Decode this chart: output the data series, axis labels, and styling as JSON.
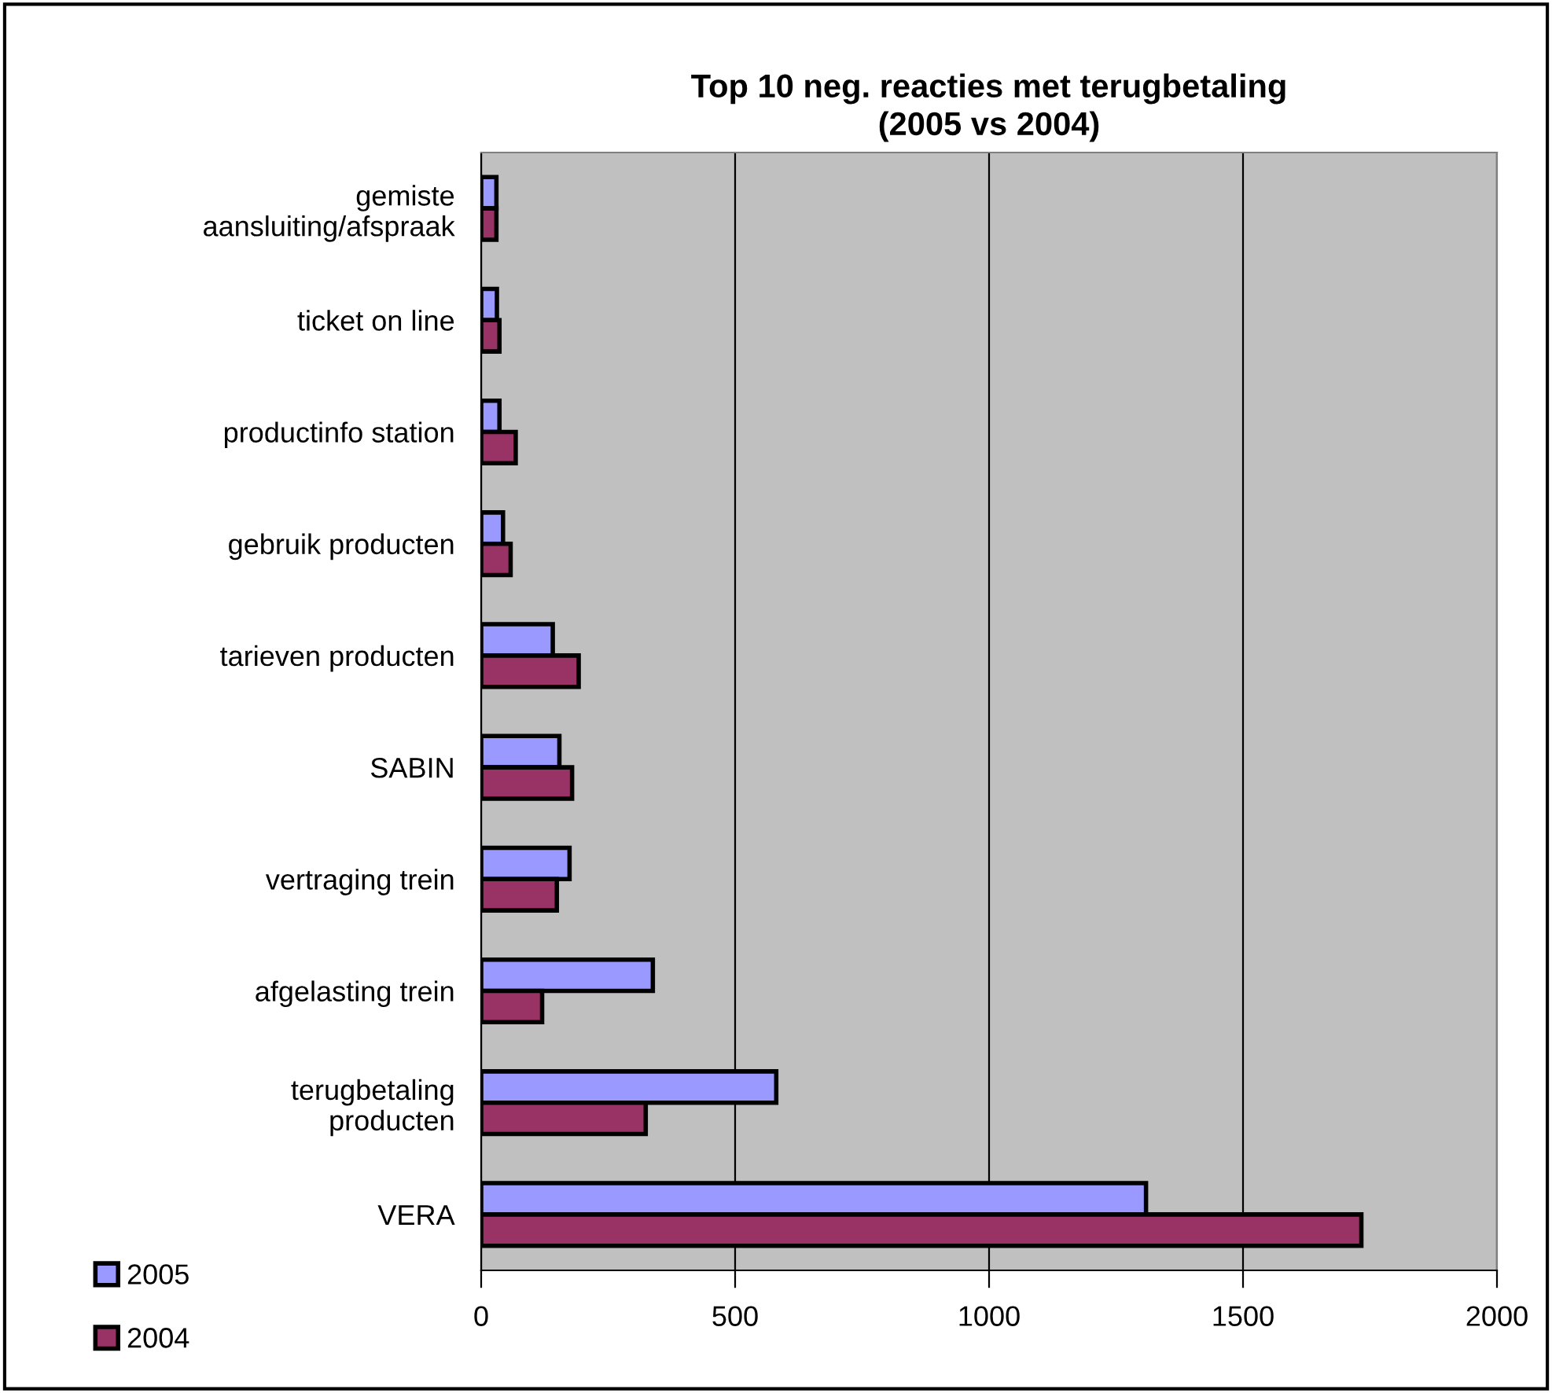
{
  "chart_data": {
    "type": "bar",
    "orientation": "horizontal",
    "title": "Top 10 neg. reacties met terugbetaling\n(2005 vs 2004)",
    "categories": [
      "gemiste aansluiting/afspraak",
      "ticket on line",
      "productinfo station",
      "gebruik producten",
      "tarieven producten",
      "SABIN",
      "vertraging trein",
      "afgelasting trein",
      "terugbetaling producten",
      "VERA"
    ],
    "series": [
      {
        "name": "2005",
        "color": "#9999ff",
        "values": [
          30,
          31,
          36,
          43,
          141,
          154,
          174,
          338,
          581,
          1309
        ]
      },
      {
        "name": "2004",
        "color": "#993366",
        "values": [
          30,
          36,
          68,
          58,
          192,
          179,
          149,
          120,
          324,
          1733
        ]
      }
    ],
    "xlim": [
      0,
      2000
    ],
    "xticks": [
      0,
      500,
      1000,
      1500,
      2000
    ],
    "grid": "x",
    "legend": "bottom left"
  }
}
